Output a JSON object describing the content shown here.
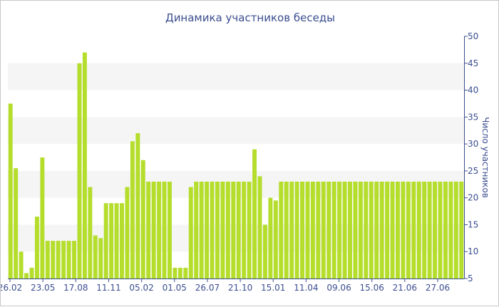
{
  "chart_data": {
    "type": "bar",
    "title": "Динамика участников беседы",
    "xlabel": "",
    "ylabel": "Число участников",
    "ylim": [
      5,
      50
    ],
    "yticks": [
      5,
      10,
      15,
      20,
      25,
      30,
      35,
      40,
      45,
      50
    ],
    "y_axis_side": "right",
    "grid": "alternating horizontal bands",
    "x_tick_labels": [
      "26.02",
      "23.05",
      "17.08",
      "11.11",
      "05.02",
      "01.05",
      "26.07",
      "21.10",
      "15.01",
      "11.04",
      "09.06",
      "15.06",
      "21.06",
      "27.06"
    ],
    "values": [
      37.5,
      25.5,
      10,
      6,
      7,
      16.5,
      27.5,
      12,
      12,
      12,
      12,
      12,
      12,
      45,
      47,
      22,
      13,
      12.5,
      19,
      19,
      19,
      19,
      22,
      30.5,
      32,
      27,
      23,
      23,
      23,
      23,
      23,
      7,
      7,
      7,
      22,
      23,
      23,
      23,
      23,
      23,
      23,
      23,
      23,
      23,
      23,
      23,
      29,
      24,
      15,
      20,
      19.5,
      23,
      23,
      23,
      23,
      23,
      23,
      23,
      23,
      23,
      23,
      23,
      23,
      23,
      23,
      23,
      23,
      23,
      23,
      23,
      23,
      23,
      23,
      23,
      23,
      23,
      23,
      23,
      23,
      23,
      23,
      23,
      23,
      23,
      23,
      23
    ],
    "colors": {
      "bar": "#b5dd2c",
      "band": "#f5f5f5",
      "text": "#3a4d8f",
      "axis": "#3a4d8f"
    }
  }
}
